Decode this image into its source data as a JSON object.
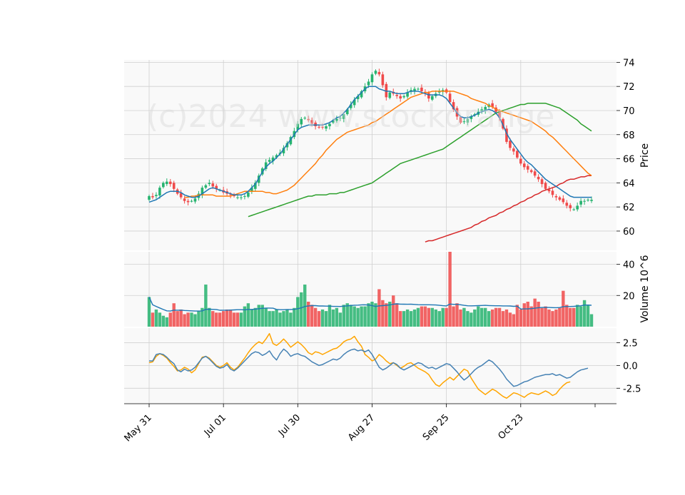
{
  "watermark": "(c)2024 www.stockorange",
  "colors": {
    "up": "#26b36f",
    "down": "#f04a4a",
    "ma_blue": "#1f77b4",
    "ma_orange": "#ff7f0e",
    "ma_green": "#2ca02c",
    "ma_red": "#d62728",
    "osc_blue": "#4682b4",
    "osc_orange": "#ffa500",
    "panel_bg": "#f9f9f9",
    "grid": "#d0d0d0"
  },
  "chart_data": {
    "type": "candlestick",
    "x_tick_labels": [
      "May 31",
      "Jul 01",
      "Jul 30",
      "Aug 27",
      "Sep 25",
      "Oct 23"
    ],
    "x_tick_index": [
      0,
      21,
      42,
      63,
      84,
      105
    ],
    "n_bars": 126,
    "price_panel": {
      "ylabel": "Price",
      "yticks": [
        60,
        62,
        64,
        66,
        68,
        70,
        72,
        74
      ],
      "ylim": [
        58.4,
        74.2
      ],
      "close": [
        62.9,
        62.8,
        63.0,
        63.6,
        64.0,
        64.1,
        63.9,
        63.5,
        63.1,
        62.8,
        62.5,
        62.4,
        62.5,
        62.7,
        63.1,
        63.6,
        63.8,
        64.0,
        63.7,
        63.5,
        63.4,
        63.2,
        63.1,
        63.0,
        62.9,
        62.8,
        62.8,
        62.9,
        63.2,
        63.6,
        64.0,
        64.6,
        65.2,
        65.7,
        65.9,
        66.1,
        66.3,
        66.5,
        66.9,
        67.3,
        67.8,
        68.3,
        68.9,
        69.3,
        69.4,
        69.2,
        68.9,
        68.7,
        68.6,
        68.6,
        68.7,
        68.9,
        69.2,
        69.3,
        69.4,
        69.7,
        70.1,
        70.5,
        70.9,
        71.2,
        71.6,
        72.0,
        72.4,
        73.0,
        73.3,
        73.0,
        72.1,
        71.1,
        71.5,
        71.4,
        71.2,
        71.0,
        71.2,
        71.5,
        71.7,
        71.8,
        71.8,
        71.6,
        71.4,
        71.0,
        71.2,
        71.4,
        71.6,
        71.7,
        71.5,
        70.7,
        70.1,
        69.5,
        69.0,
        69.1,
        69.3,
        69.5,
        69.7,
        69.9,
        70.1,
        70.3,
        70.5,
        70.3,
        69.9,
        69.4,
        68.5,
        67.4,
        66.9,
        66.6,
        66.1,
        65.6,
        65.3,
        65.1,
        64.9,
        64.6,
        64.3,
        63.9,
        63.5,
        63.3,
        63.0,
        62.8,
        62.6,
        62.4,
        62.1,
        61.9,
        61.8,
        62.1,
        62.5,
        62.5,
        62.6,
        62.6
      ],
      "ma_blue": [
        62.4,
        62.5,
        62.6,
        62.8,
        63.0,
        63.2,
        63.3,
        63.3,
        63.3,
        63.2,
        63.0,
        62.9,
        62.8,
        62.8,
        62.9,
        63.1,
        63.3,
        63.5,
        63.6,
        63.5,
        63.4,
        63.3,
        63.2,
        63.1,
        63.0,
        63.0,
        63.0,
        63.1,
        63.3,
        63.6,
        63.9,
        64.4,
        64.9,
        65.3,
        65.6,
        65.8,
        66.1,
        66.4,
        66.8,
        67.2,
        67.6,
        68.0,
        68.4,
        68.6,
        68.7,
        68.8,
        68.8,
        68.8,
        68.8,
        68.8,
        68.9,
        69.0,
        69.2,
        69.4,
        69.5,
        69.8,
        70.1,
        70.5,
        70.9,
        71.2,
        71.5,
        71.8,
        72.0,
        72.0,
        72.0,
        71.8,
        71.7,
        71.6,
        71.6,
        71.5,
        71.4,
        71.4,
        71.4,
        71.5,
        71.6,
        71.6,
        71.6,
        71.5,
        71.4,
        71.3,
        71.3,
        71.3,
        71.3,
        71.2,
        71.0,
        70.6,
        70.2,
        69.8,
        69.5,
        69.4,
        69.4,
        69.5,
        69.6,
        69.8,
        69.9,
        70.0,
        70.1,
        70.0,
        69.8,
        69.4,
        68.8,
        68.1,
        67.6,
        67.2,
        66.8,
        66.4,
        66.0,
        65.7,
        65.5,
        65.2,
        64.9,
        64.6,
        64.3,
        64.1,
        63.9,
        63.7,
        63.5,
        63.3,
        63.1,
        62.9,
        62.8,
        62.8,
        62.8,
        62.8,
        62.8,
        62.8
      ],
      "ma_orange": [
        62.8,
        62.8,
        62.9,
        62.9,
        63.0,
        63.0,
        63.0,
        63.0,
        63.0,
        62.9,
        62.9,
        62.9,
        62.9,
        62.9,
        63.0,
        63.1,
        63.2,
        63.3,
        63.3,
        63.3,
        63.3,
        63.3,
        63.3,
        63.2,
        63.2,
        63.1,
        63.1,
        63.2,
        63.3,
        63.4,
        63.6,
        63.8,
        64.1,
        64.4,
        64.7,
        65.0,
        65.3,
        65.6,
        66.0,
        66.3,
        66.7,
        67.0,
        67.3,
        67.6,
        67.8,
        68.0,
        68.2,
        68.3,
        68.4,
        68.5,
        68.6,
        68.7,
        68.8,
        69.0,
        69.1,
        69.3,
        69.5,
        69.7,
        69.9,
        70.1,
        70.3,
        70.5,
        70.7,
        70.9,
        71.1,
        71.2,
        71.3,
        71.4,
        71.5,
        71.5,
        71.6,
        71.6,
        71.6,
        71.6,
        71.6,
        71.6,
        71.6,
        71.5,
        71.4,
        71.3,
        71.2,
        71.0,
        70.9,
        70.8,
        70.7,
        70.6,
        70.4,
        70.3,
        70.1,
        70.0,
        69.9,
        69.8,
        69.7,
        69.6,
        69.5,
        69.4,
        69.3,
        69.2,
        69.1,
        68.9,
        68.7,
        68.5,
        68.3,
        68.0,
        67.8,
        67.5,
        67.2,
        66.9,
        66.6,
        66.3,
        66.0,
        65.7,
        65.4,
        65.1,
        64.8,
        64.6
      ],
      "ma_green": [
        61.2,
        61.3,
        61.4,
        61.5,
        61.6,
        61.7,
        61.8,
        61.9,
        62.0,
        62.1,
        62.2,
        62.3,
        62.4,
        62.5,
        62.6,
        62.7,
        62.8,
        62.9,
        62.9,
        63.0,
        63.0,
        63.0,
        63.0,
        63.1,
        63.1,
        63.1,
        63.2,
        63.2,
        63.3,
        63.4,
        63.5,
        63.6,
        63.7,
        63.8,
        63.9,
        64.0,
        64.2,
        64.4,
        64.6,
        64.8,
        65.0,
        65.2,
        65.4,
        65.6,
        65.7,
        65.8,
        65.9,
        66.0,
        66.1,
        66.2,
        66.3,
        66.4,
        66.5,
        66.6,
        66.7,
        66.8,
        67.0,
        67.2,
        67.4,
        67.6,
        67.8,
        68.0,
        68.2,
        68.4,
        68.6,
        68.8,
        69.0,
        69.2,
        69.4,
        69.6,
        69.8,
        69.9,
        70.0,
        70.1,
        70.2,
        70.3,
        70.4,
        70.5,
        70.5,
        70.6,
        70.6,
        70.6,
        70.6,
        70.6,
        70.6,
        70.5,
        70.4,
        70.3,
        70.2,
        70.0,
        69.8,
        69.6,
        69.4,
        69.2,
        68.9,
        68.7,
        68.5,
        68.3
      ],
      "ma_red": [
        59.1,
        59.2,
        59.2,
        59.3,
        59.4,
        59.5,
        59.6,
        59.7,
        59.8,
        59.9,
        60.0,
        60.1,
        60.2,
        60.3,
        60.5,
        60.6,
        60.8,
        60.9,
        61.1,
        61.2,
        61.3,
        61.5,
        61.6,
        61.8,
        61.9,
        62.1,
        62.2,
        62.4,
        62.5,
        62.7,
        62.8,
        63.0,
        63.1,
        63.3,
        63.4,
        63.5,
        63.6,
        63.7,
        63.9,
        64.0,
        64.2,
        64.3,
        64.3,
        64.4,
        64.5,
        64.5,
        64.6,
        64.6
      ]
    },
    "volume_panel": {
      "ylabel": "Volume  10^6",
      "yticks": [
        20,
        40
      ],
      "ylim": [
        0,
        48
      ],
      "values": [
        19,
        9,
        11,
        9,
        7,
        6,
        9,
        15,
        10,
        11,
        8,
        9,
        9,
        8,
        10,
        12,
        27,
        12,
        10,
        9,
        9,
        10,
        11,
        11,
        9,
        9,
        9,
        13,
        15,
        11,
        12,
        14,
        14,
        12,
        10,
        10,
        11,
        9,
        10,
        11,
        9,
        12,
        19,
        22,
        27,
        16,
        14,
        12,
        10,
        11,
        10,
        14,
        11,
        12,
        9,
        14,
        15,
        14,
        13,
        12,
        13,
        13,
        15,
        16,
        15,
        24,
        17,
        15,
        16,
        20,
        15,
        10,
        10,
        11,
        10,
        11,
        12,
        13,
        13,
        12,
        12,
        11,
        10,
        12,
        12,
        48,
        13,
        15,
        11,
        12,
        10,
        9,
        11,
        13,
        12,
        12,
        10,
        11,
        12,
        12,
        10,
        11,
        9,
        8,
        14,
        11,
        15,
        16,
        13,
        18,
        16,
        12,
        13,
        11,
        10,
        11,
        12,
        23,
        14,
        12,
        12,
        14,
        13,
        17,
        14,
        8
      ]
    },
    "oscillator_panel": {
      "yticks": [
        -2.5,
        0.0,
        2.5
      ],
      "ylim": [
        -4.2,
        4.1
      ],
      "blue": [
        0.5,
        0.5,
        1.2,
        1.3,
        1.2,
        0.9,
        0.5,
        0.2,
        -0.5,
        -0.7,
        -0.4,
        -0.6,
        -0.5,
        -0.2,
        0.3,
        0.8,
        1.0,
        0.7,
        0.3,
        -0.1,
        -0.3,
        -0.2,
        0.1,
        -0.4,
        -0.6,
        -0.3,
        0.1,
        0.5,
        0.9,
        1.3,
        1.5,
        1.4,
        1.1,
        1.3,
        1.6,
        1.0,
        0.6,
        1.3,
        1.8,
        1.5,
        1.0,
        1.2,
        1.3,
        1.1,
        1.0,
        0.7,
        0.4,
        0.2,
        0.0,
        0.1,
        0.3,
        0.5,
        0.7,
        0.6,
        0.8,
        1.2,
        1.5,
        1.7,
        1.8,
        1.6,
        1.7,
        1.5,
        1.7,
        1.2,
        0.5,
        -0.2,
        -0.5,
        -0.3,
        0.0,
        0.3,
        0.1,
        -0.3,
        -0.5,
        -0.3,
        -0.1,
        0.1,
        0.3,
        0.2,
        -0.1,
        -0.3,
        -0.2,
        -0.4,
        -0.2,
        0.0,
        0.2,
        0.1,
        -0.3,
        -0.7,
        -1.2,
        -1.6,
        -1.3,
        -0.9,
        -0.5,
        -0.2,
        0.0,
        0.3,
        0.6,
        0.4,
        0.0,
        -0.4,
        -0.9,
        -1.5,
        -1.9,
        -2.3,
        -2.2,
        -2.0,
        -1.8,
        -1.7,
        -1.5,
        -1.3,
        -1.2,
        -1.1,
        -1.0,
        -1.0,
        -0.9,
        -1.1,
        -1.0,
        -1.2,
        -1.4,
        -1.3,
        -1.0,
        -0.7,
        -0.5,
        -0.4,
        -0.3
      ],
      "orange": [
        0.3,
        0.4,
        1.0,
        1.3,
        1.1,
        0.8,
        0.3,
        -0.1,
        -0.6,
        -0.5,
        -0.2,
        -0.4,
        -0.8,
        -0.5,
        0.2,
        0.9,
        1.0,
        0.8,
        0.4,
        0.0,
        -0.2,
        0.0,
        0.3,
        -0.2,
        -0.5,
        -0.2,
        0.3,
        0.8,
        1.4,
        1.9,
        2.3,
        2.6,
        2.4,
        2.9,
        3.5,
        2.4,
        2.2,
        2.5,
        2.9,
        2.5,
        2.0,
        2.3,
        2.6,
        2.3,
        1.9,
        1.4,
        1.2,
        1.5,
        1.4,
        1.2,
        1.4,
        1.6,
        1.8,
        1.9,
        2.2,
        2.6,
        2.8,
        2.9,
        3.2,
        2.6,
        2.1,
        1.2,
        0.9,
        0.5,
        0.7,
        1.2,
        0.9,
        0.5,
        0.2,
        0.3,
        0.0,
        -0.3,
        -0.1,
        0.2,
        0.3,
        0.0,
        -0.3,
        -0.5,
        -0.7,
        -1.0,
        -1.6,
        -2.1,
        -2.3,
        -1.9,
        -1.6,
        -1.3,
        -1.6,
        -1.2,
        -0.8,
        -0.4,
        -0.6,
        -1.4,
        -2.0,
        -2.6,
        -2.9,
        -3.2,
        -2.9,
        -2.6,
        -2.8,
        -3.1,
        -3.4,
        -3.6,
        -3.3,
        -3.0,
        -3.1,
        -3.3,
        -3.5,
        -3.2,
        -3.0,
        -3.1,
        -3.2,
        -3.0,
        -2.8,
        -3.0,
        -3.3,
        -3.1,
        -2.6,
        -2.2,
        -1.9,
        -1.8
      ]
    }
  }
}
